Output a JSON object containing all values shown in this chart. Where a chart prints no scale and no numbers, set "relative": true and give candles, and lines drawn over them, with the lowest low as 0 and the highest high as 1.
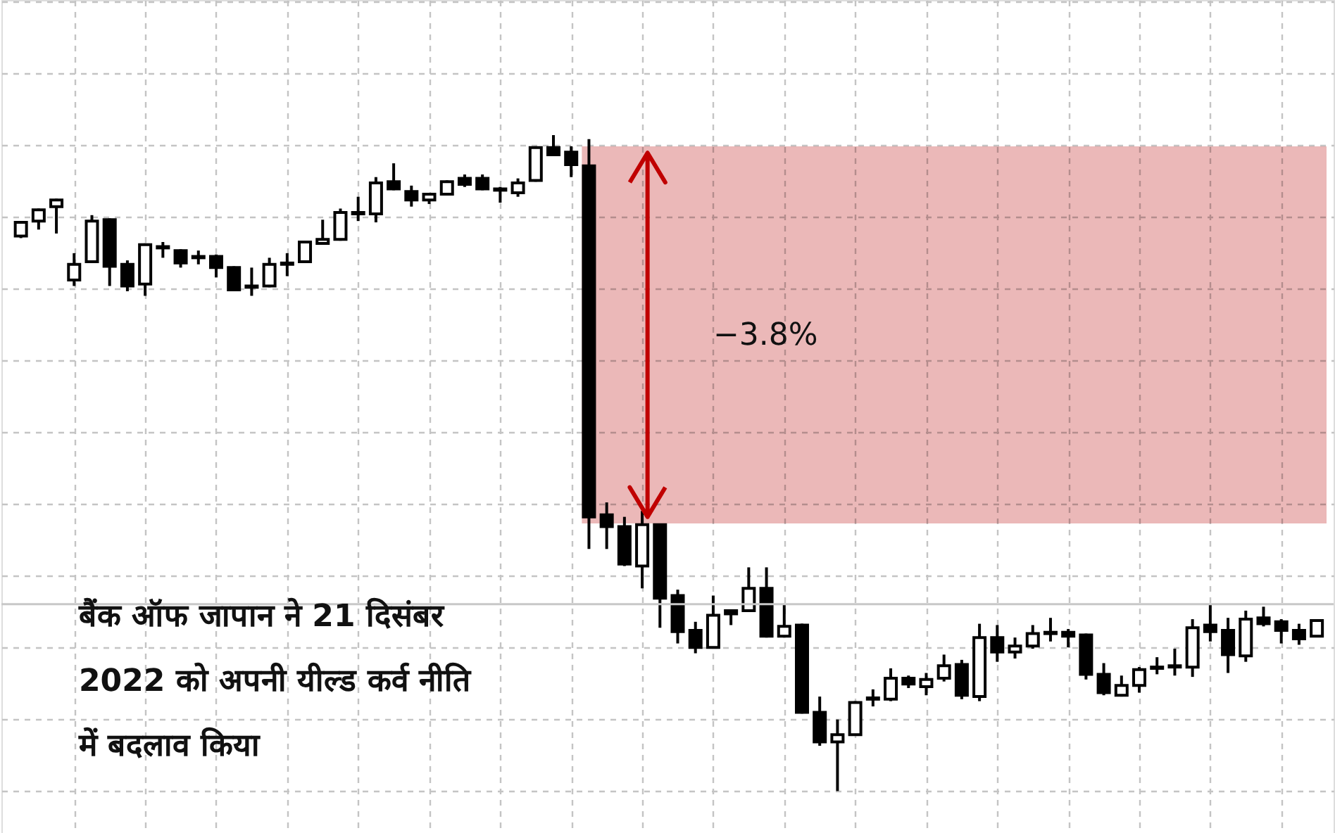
{
  "chart_data": {
    "type": "candlestick",
    "relative": true,
    "tick_labels": false,
    "grid": true,
    "color": "#000000",
    "categories": [
      null,
      null,
      null,
      null,
      null,
      null,
      null,
      null,
      null,
      null,
      null,
      null,
      null,
      null,
      null,
      null,
      null,
      null,
      null,
      null,
      null,
      null,
      null,
      null,
      null,
      null,
      null,
      null,
      null,
      null,
      null,
      null,
      null,
      null,
      null,
      null,
      null,
      null,
      null,
      null,
      null,
      null,
      null,
      null,
      null,
      null,
      null,
      null,
      null,
      null,
      null,
      null,
      null,
      null,
      null,
      null,
      null,
      null,
      null,
      null,
      null,
      null,
      null,
      null,
      null,
      null,
      null,
      null,
      null,
      null,
      null,
      null,
      null,
      null
    ],
    "ohlc": [
      [
        0.846,
        0.869,
        0.843,
        0.867
      ],
      [
        0.869,
        0.888,
        0.856,
        0.886
      ],
      [
        0.891,
        0.903,
        0.85,
        0.901
      ],
      [
        0.779,
        0.82,
        0.77,
        0.803
      ],
      [
        0.807,
        0.878,
        0.805,
        0.869
      ],
      [
        0.871,
        0.873,
        0.77,
        0.8
      ],
      [
        0.803,
        0.809,
        0.762,
        0.77
      ],
      [
        0.773,
        0.835,
        0.755,
        0.833
      ],
      [
        0.83,
        0.837,
        0.813,
        0.828
      ],
      [
        0.824,
        0.826,
        0.798,
        0.805
      ],
      [
        0.815,
        0.824,
        0.803,
        0.813
      ],
      [
        0.815,
        0.818,
        0.783,
        0.798
      ],
      [
        0.798,
        0.8,
        0.762,
        0.764
      ],
      [
        0.77,
        0.798,
        0.755,
        0.768
      ],
      [
        0.77,
        0.813,
        0.768,
        0.803
      ],
      [
        0.803,
        0.82,
        0.785,
        0.805
      ],
      [
        0.807,
        0.839,
        0.805,
        0.837
      ],
      [
        0.835,
        0.871,
        0.833,
        0.841
      ],
      [
        0.841,
        0.888,
        0.839,
        0.882
      ],
      [
        0.882,
        0.906,
        0.869,
        0.88
      ],
      [
        0.88,
        0.936,
        0.867,
        0.927
      ],
      [
        0.929,
        0.957,
        0.916,
        0.918
      ],
      [
        0.914,
        0.923,
        0.891,
        0.901
      ],
      [
        0.901,
        0.912,
        0.895,
        0.91
      ],
      [
        0.91,
        0.931,
        0.908,
        0.929
      ],
      [
        0.934,
        0.94,
        0.921,
        0.925
      ],
      [
        0.934,
        0.94,
        0.916,
        0.918
      ],
      [
        0.918,
        0.921,
        0.897,
        0.916
      ],
      [
        0.912,
        0.934,
        0.906,
        0.927
      ],
      [
        0.931,
        0.983,
        0.929,
        0.981
      ],
      [
        0.981,
        1.0,
        0.968,
        0.97
      ],
      [
        0.974,
        0.983,
        0.936,
        0.955
      ],
      [
        0.953,
        0.994,
        0.369,
        0.418
      ],
      [
        0.421,
        0.44,
        0.369,
        0.403
      ],
      [
        0.403,
        0.418,
        0.343,
        0.346
      ],
      [
        0.343,
        0.427,
        0.309,
        0.406
      ],
      [
        0.406,
        0.408,
        0.249,
        0.294
      ],
      [
        0.298,
        0.307,
        0.225,
        0.243
      ],
      [
        0.245,
        0.258,
        0.21,
        0.219
      ],
      [
        0.219,
        0.298,
        0.217,
        0.268
      ],
      [
        0.275,
        0.277,
        0.253,
        0.27
      ],
      [
        0.275,
        0.341,
        0.273,
        0.309
      ],
      [
        0.309,
        0.341,
        0.234,
        0.236
      ],
      [
        0.236,
        0.285,
        0.234,
        0.251
      ],
      [
        0.253,
        0.255,
        0.118,
        0.12
      ],
      [
        0.12,
        0.144,
        0.069,
        0.075
      ],
      [
        0.075,
        0.109,
        0.0,
        0.086
      ],
      [
        0.086,
        0.137,
        0.084,
        0.135
      ],
      [
        0.142,
        0.155,
        0.129,
        0.14
      ],
      [
        0.14,
        0.187,
        0.137,
        0.172
      ],
      [
        0.172,
        0.176,
        0.157,
        0.163
      ],
      [
        0.159,
        0.18,
        0.146,
        0.17
      ],
      [
        0.172,
        0.208,
        0.167,
        0.191
      ],
      [
        0.193,
        0.2,
        0.14,
        0.146
      ],
      [
        0.144,
        0.255,
        0.137,
        0.234
      ],
      [
        0.234,
        0.253,
        0.197,
        0.212
      ],
      [
        0.212,
        0.234,
        0.202,
        0.221
      ],
      [
        0.221,
        0.253,
        0.217,
        0.24
      ],
      [
        0.242,
        0.264,
        0.228,
        0.24
      ],
      [
        0.242,
        0.247,
        0.219,
        0.236
      ],
      [
        0.238,
        0.24,
        0.17,
        0.178
      ],
      [
        0.178,
        0.195,
        0.146,
        0.15
      ],
      [
        0.146,
        0.176,
        0.144,
        0.161
      ],
      [
        0.161,
        0.189,
        0.15,
        0.185
      ],
      [
        0.189,
        0.204,
        0.178,
        0.187
      ],
      [
        0.189,
        0.217,
        0.176,
        0.191
      ],
      [
        0.189,
        0.262,
        0.174,
        0.249
      ],
      [
        0.253,
        0.285,
        0.228,
        0.243
      ],
      [
        0.245,
        0.264,
        0.18,
        0.208
      ],
      [
        0.206,
        0.275,
        0.197,
        0.262
      ],
      [
        0.264,
        0.281,
        0.251,
        0.255
      ],
      [
        0.258,
        0.262,
        0.225,
        0.245
      ],
      [
        0.245,
        0.255,
        0.223,
        0.232
      ],
      [
        0.236,
        0.262,
        0.236,
        0.26
      ]
    ],
    "bands": [
      {
        "axis": "y",
        "from": 0.408,
        "to": 0.983,
        "label": "−3.8%",
        "color": "#ebb8b8"
      }
    ],
    "ref_lines": [
      {
        "axis": "y",
        "value": 0.285,
        "color": "#c8c8c8"
      }
    ],
    "annotations": [
      "बैंक ऑफ जापान ने 21 दिसंबर 2022 को अपनी यील्ड कर्व नीति में बदलाव किया"
    ]
  }
}
